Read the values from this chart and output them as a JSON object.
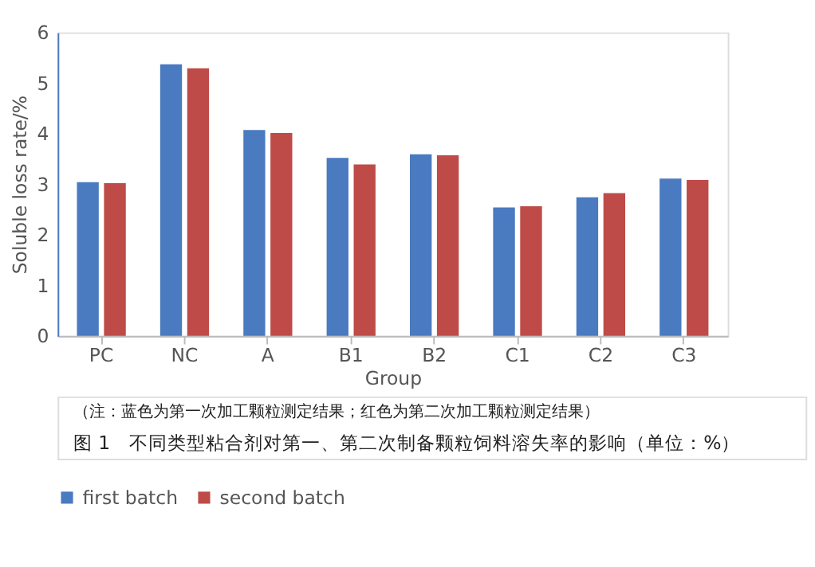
{
  "chart_data": {
    "type": "bar",
    "xlabel": "Group",
    "ylabel": "Soluble loss rate/%",
    "categories": [
      "PC",
      "NC",
      "A",
      "B1",
      "B2",
      "C1",
      "C2",
      "C3"
    ],
    "series": [
      {
        "name": "first batch",
        "color": "#4a7ac0",
        "values": [
          3.04,
          5.37,
          4.07,
          3.52,
          3.59,
          2.54,
          2.74,
          3.11
        ]
      },
      {
        "name": "second batch",
        "color": "#be4b48",
        "values": [
          3.02,
          5.29,
          4.01,
          3.39,
          3.57,
          2.56,
          2.82,
          3.08
        ]
      }
    ],
    "ylim": [
      0,
      6
    ],
    "yticks": [
      0,
      1,
      2,
      3,
      4,
      5,
      6
    ],
    "grid": false,
    "legend": "bottom",
    "annotations": [
      "（注：蓝色为第一次加工颗粒测定结果；红色为第二次加工颗粒测定结果）",
      "图 1　不同类型粘合剂对第一、第二次制备颗粒饲料溶失率的影响（单位：%）"
    ]
  }
}
